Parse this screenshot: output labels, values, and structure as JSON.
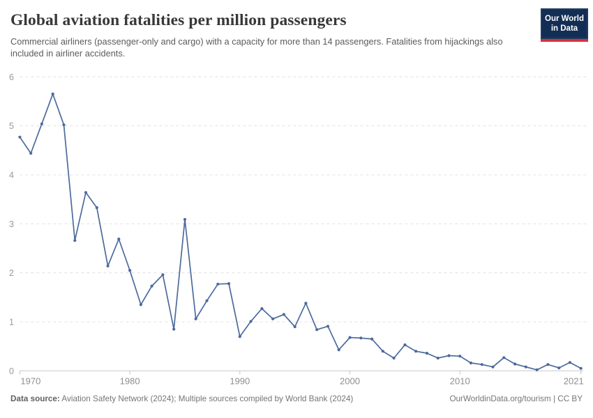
{
  "header": {
    "title": "Global aviation fatalities per million passengers",
    "subtitle": "Commercial airliners (passenger-only and cargo) with a capacity for more than 14 passengers. Fatalities from hijackings also included in airliner accidents.",
    "logo": {
      "line1": "Our World",
      "line2": "in Data"
    }
  },
  "footer": {
    "source_label": "Data source:",
    "source_text": " Aviation Safety Network (2024); Multiple sources compiled by World Bank (2024)",
    "right_text": "OurWorldinData.org/tourism | CC BY"
  },
  "chart_data": {
    "type": "line",
    "title": "Global aviation fatalities per million passengers",
    "xlabel": "",
    "ylabel": "",
    "xlim": [
      1970,
      2021
    ],
    "ylim": [
      0,
      6
    ],
    "yticks": [
      0,
      1,
      2,
      3,
      4,
      5,
      6
    ],
    "xticks": [
      1970,
      1980,
      1990,
      2000,
      2010,
      2021
    ],
    "grid": true,
    "legend": "none",
    "line_color": "#4c6a9c",
    "x": [
      1970,
      1971,
      1972,
      1973,
      1974,
      1975,
      1976,
      1977,
      1978,
      1979,
      1980,
      1981,
      1982,
      1983,
      1984,
      1985,
      1986,
      1987,
      1988,
      1989,
      1990,
      1991,
      1992,
      1993,
      1994,
      1995,
      1996,
      1997,
      1998,
      1999,
      2000,
      2001,
      2002,
      2003,
      2004,
      2005,
      2006,
      2007,
      2008,
      2009,
      2010,
      2011,
      2012,
      2013,
      2014,
      2015,
      2016,
      2017,
      2018,
      2019,
      2020,
      2021
    ],
    "values": [
      4.77,
      4.44,
      5.04,
      5.65,
      5.02,
      2.66,
      3.64,
      3.33,
      2.14,
      2.69,
      2.05,
      1.35,
      1.73,
      1.96,
      0.85,
      3.09,
      1.06,
      1.43,
      1.77,
      1.78,
      0.7,
      1.01,
      1.27,
      1.06,
      1.15,
      0.9,
      1.38,
      0.84,
      0.91,
      0.43,
      0.68,
      0.67,
      0.65,
      0.4,
      0.26,
      0.53,
      0.4,
      0.36,
      0.26,
      0.31,
      0.3,
      0.16,
      0.13,
      0.08,
      0.27,
      0.14,
      0.08,
      0.02,
      0.13,
      0.06,
      0.17,
      0.05
    ]
  }
}
